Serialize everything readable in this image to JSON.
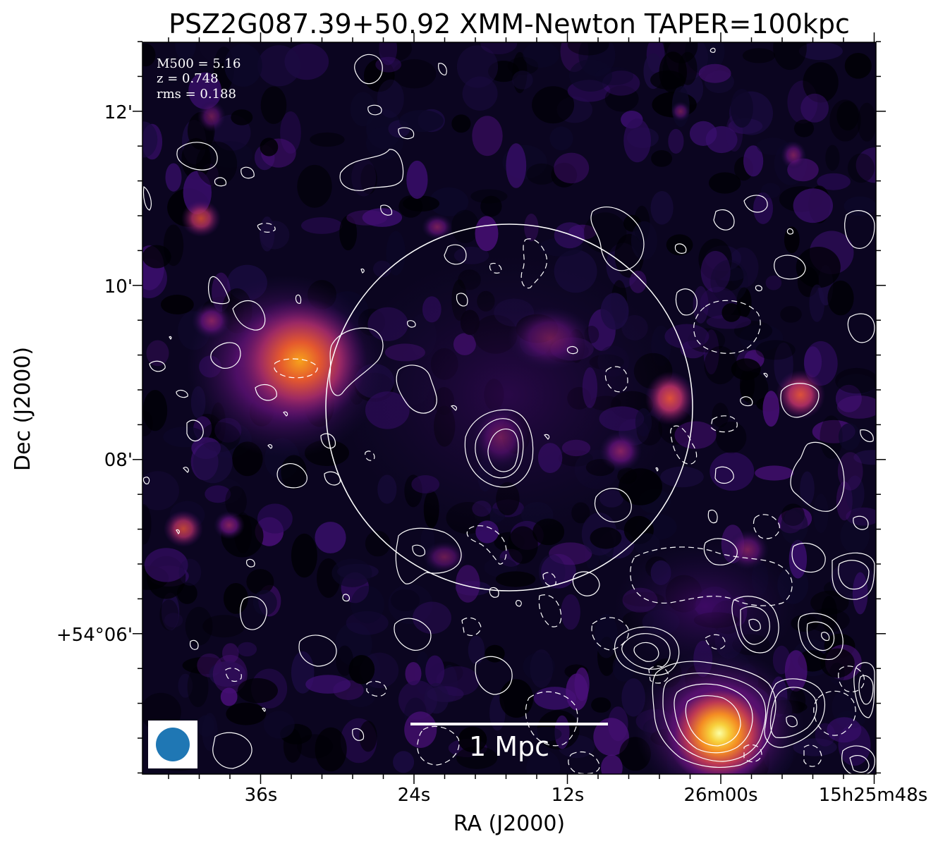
{
  "figure": {
    "title": "PSZ2G087.39+50.92 XMM-Newton TAPER=100kpc",
    "xlabel": "RA (J2000)",
    "ylabel": "Dec (J2000)",
    "x_ticks": [
      "36s",
      "24s",
      "12s",
      "26m00s",
      "15h25m48s"
    ],
    "y_ticks": [
      "12'",
      "10'",
      "08'",
      "+54°06'"
    ],
    "info": {
      "mass": "M500 = 5.16",
      "redshift": "z = 0.748",
      "rms": "rms = 0.188"
    },
    "scalebar_label": "1 Mpc",
    "colormap": "inferno",
    "contour_color": "#ffffff",
    "beam_color": "#1f77b4"
  }
}
